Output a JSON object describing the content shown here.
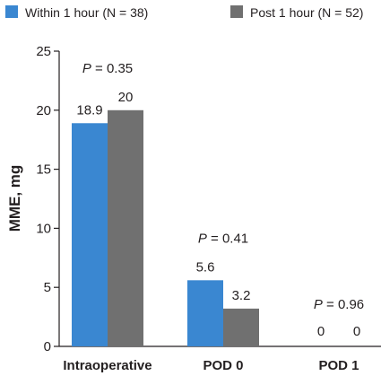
{
  "chart_data": {
    "type": "bar",
    "categories": [
      "Intraoperative",
      "POD 0",
      "POD 1"
    ],
    "series": [
      {
        "name": "Within 1 hour (N = 38)",
        "values": [
          18.9,
          5.6,
          0
        ],
        "labels": [
          "18.9",
          "5.6",
          "0"
        ],
        "color": "#3a87d1"
      },
      {
        "name": "Post 1 hour (N = 52)",
        "values": [
          20,
          3.2,
          0
        ],
        "labels": [
          "20",
          "3.2",
          "0"
        ],
        "color": "#707070"
      }
    ],
    "p_values": [
      {
        "p": "P",
        "rest": " = 0.35"
      },
      {
        "p": "P",
        "rest": " = 0.41"
      },
      {
        "p": "P",
        "rest": " = 0.96"
      }
    ],
    "xlabel": "",
    "ylabel": "MME, mg",
    "ylim": [
      0,
      25
    ],
    "yticks": [
      0,
      5,
      10,
      15,
      20,
      25
    ],
    "grid": false,
    "legend_position": "top"
  }
}
